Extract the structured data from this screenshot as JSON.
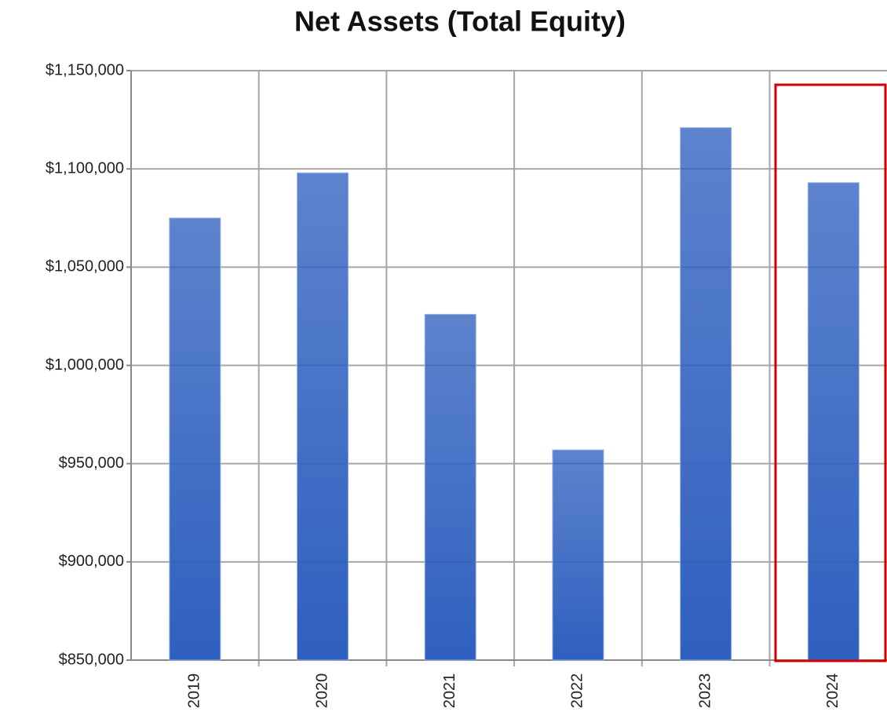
{
  "chart_data": {
    "type": "bar",
    "title": "Net Assets (Total Equity)",
    "categories": [
      "2019",
      "2020",
      "2021",
      "2022",
      "2023",
      "2024"
    ],
    "values": [
      1075000,
      1098000,
      1026000,
      957000,
      1121000,
      1093000
    ],
    "color": "#2f60bf",
    "ylim": [
      850000,
      1150000
    ],
    "yticks": [
      {
        "value": 850000,
        "label": "$850,000"
      },
      {
        "value": 900000,
        "label": "$900,000"
      },
      {
        "value": 950000,
        "label": "$950,000"
      },
      {
        "value": 1000000,
        "label": "$1,000,000"
      },
      {
        "value": 1050000,
        "label": "$1,050,000"
      },
      {
        "value": 1100000,
        "label": "$1,100,000"
      },
      {
        "value": 1150000,
        "label": "$1,150,000"
      }
    ],
    "grid": true
  }
}
